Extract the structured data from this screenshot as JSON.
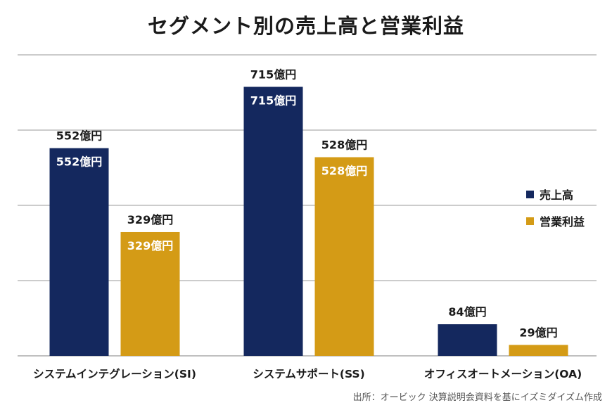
{
  "title": "セグメント別の売上高と営業利益",
  "source": "出所：オービック 決算説明会資料を基にイズミダイズム作成",
  "colors": {
    "sales": "#14285e",
    "profit": "#d49b16",
    "grid": "#9a9a9a"
  },
  "chart_data": {
    "type": "bar",
    "title": "セグメント別の売上高と営業利益",
    "categories": [
      "システムインテグレーション(SI)",
      "システムサポート(SS)",
      "オフィスオートメーション(OA)"
    ],
    "series": [
      {
        "name": "売上高",
        "values": [
          552,
          715,
          84
        ],
        "labels": [
          "552億円",
          "715億円",
          "84億円"
        ]
      },
      {
        "name": "営業利益",
        "values": [
          329,
          528,
          29
        ],
        "labels": [
          "329億円",
          "528億円",
          "29億円"
        ]
      }
    ],
    "inner_labels": {
      "売上高": [
        true,
        true,
        false
      ],
      "営業利益": [
        true,
        true,
        false
      ]
    },
    "ylim": [
      0,
      800
    ],
    "grid": true,
    "legend": "right"
  }
}
